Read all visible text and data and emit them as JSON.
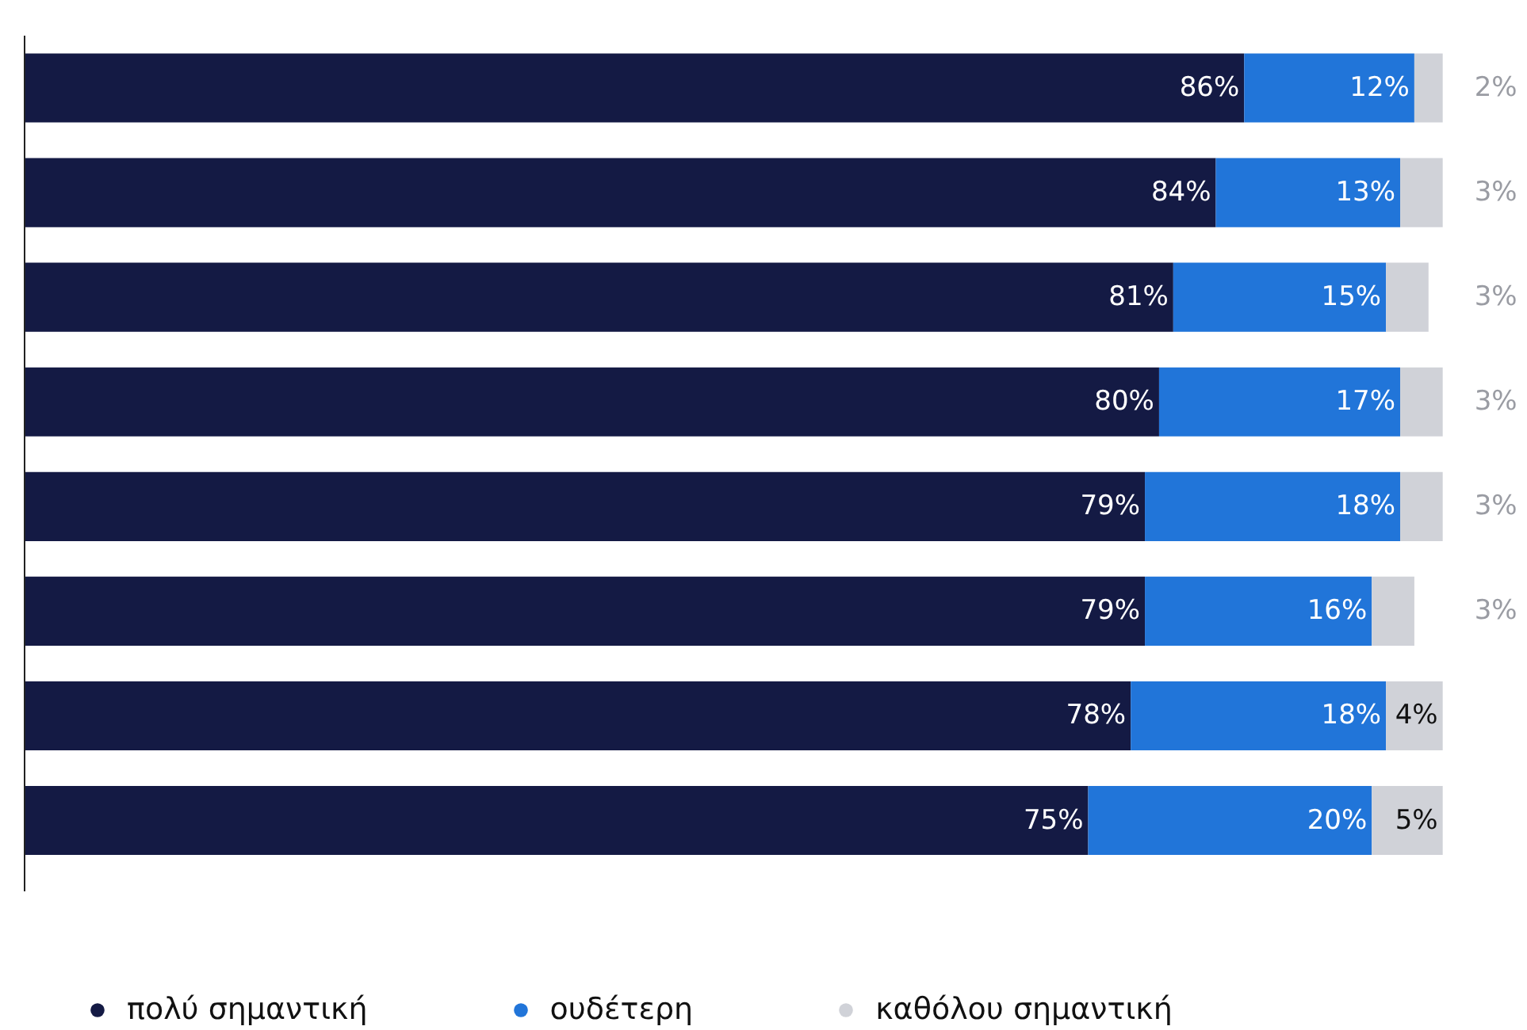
{
  "chart_data": {
    "type": "bar",
    "orientation": "horizontal",
    "stacked": true,
    "legend": "bottom",
    "grid": false,
    "categories": [
      null,
      null,
      null,
      null,
      null,
      null,
      null,
      null
    ],
    "series": [
      {
        "name": "πολύ σημαντική",
        "color": "#141a44",
        "values": [
          86,
          84,
          81,
          80,
          79,
          79,
          78,
          75
        ],
        "value_labels": [
          "86%",
          "84%",
          "81%",
          "80%",
          "79%",
          "79%",
          "78%",
          "75%"
        ]
      },
      {
        "name": "ουδέτερη",
        "color": "#2175d9",
        "values": [
          12,
          13,
          15,
          17,
          18,
          16,
          18,
          20
        ],
        "value_labels": [
          "12%",
          "13%",
          "15%",
          "17%",
          "18%",
          "16%",
          "18%",
          "20%"
        ]
      },
      {
        "name": "καθόλου σημαντική",
        "color": "#d0d2d8",
        "values": [
          2,
          3,
          3,
          3,
          3,
          3,
          4,
          5
        ],
        "value_labels": [
          "2%",
          "3%",
          "3%",
          "3%",
          "3%",
          "3%",
          "4%",
          "5%"
        ]
      }
    ]
  }
}
